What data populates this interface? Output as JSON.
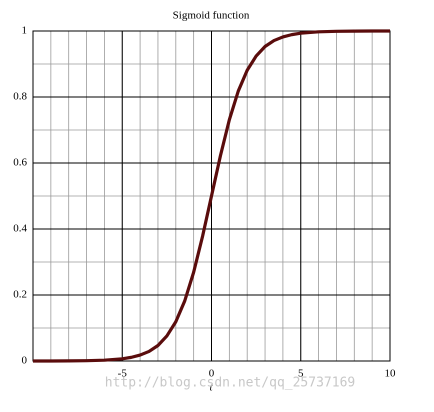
{
  "chart_data": {
    "type": "line",
    "title": "Sigmoid function",
    "x_label": "t",
    "x": [
      -10,
      -9,
      -8,
      -7,
      -6,
      -5,
      -4.5,
      -4,
      -3.5,
      -3,
      -2.5,
      -2,
      -1.5,
      -1,
      -0.5,
      0,
      0.5,
      1,
      1.5,
      2,
      2.5,
      3,
      3.5,
      4,
      4.5,
      5,
      6,
      7,
      8,
      9,
      10
    ],
    "series": [
      {
        "color": "#5a0c0c",
        "values": [
          0,
          0.0001,
          0.0003,
          0.0009,
          0.0025,
          0.0067,
          0.011,
          0.018,
          0.029,
          0.047,
          0.076,
          0.119,
          0.182,
          0.269,
          0.378,
          0.5,
          0.622,
          0.731,
          0.818,
          0.881,
          0.924,
          0.953,
          0.971,
          0.982,
          0.989,
          0.9933,
          0.9975,
          0.9991,
          0.9997,
          0.9999,
          1
        ]
      }
    ],
    "xlim": [
      -10,
      10
    ],
    "ylim": [
      0,
      1
    ],
    "xticks": [
      -5,
      0,
      5,
      10
    ],
    "yticks": [
      0,
      0.2,
      0.4,
      0.6,
      0.8,
      1
    ],
    "grid": true,
    "watermark": "http://blog.csdn.net/qq_25737169"
  }
}
